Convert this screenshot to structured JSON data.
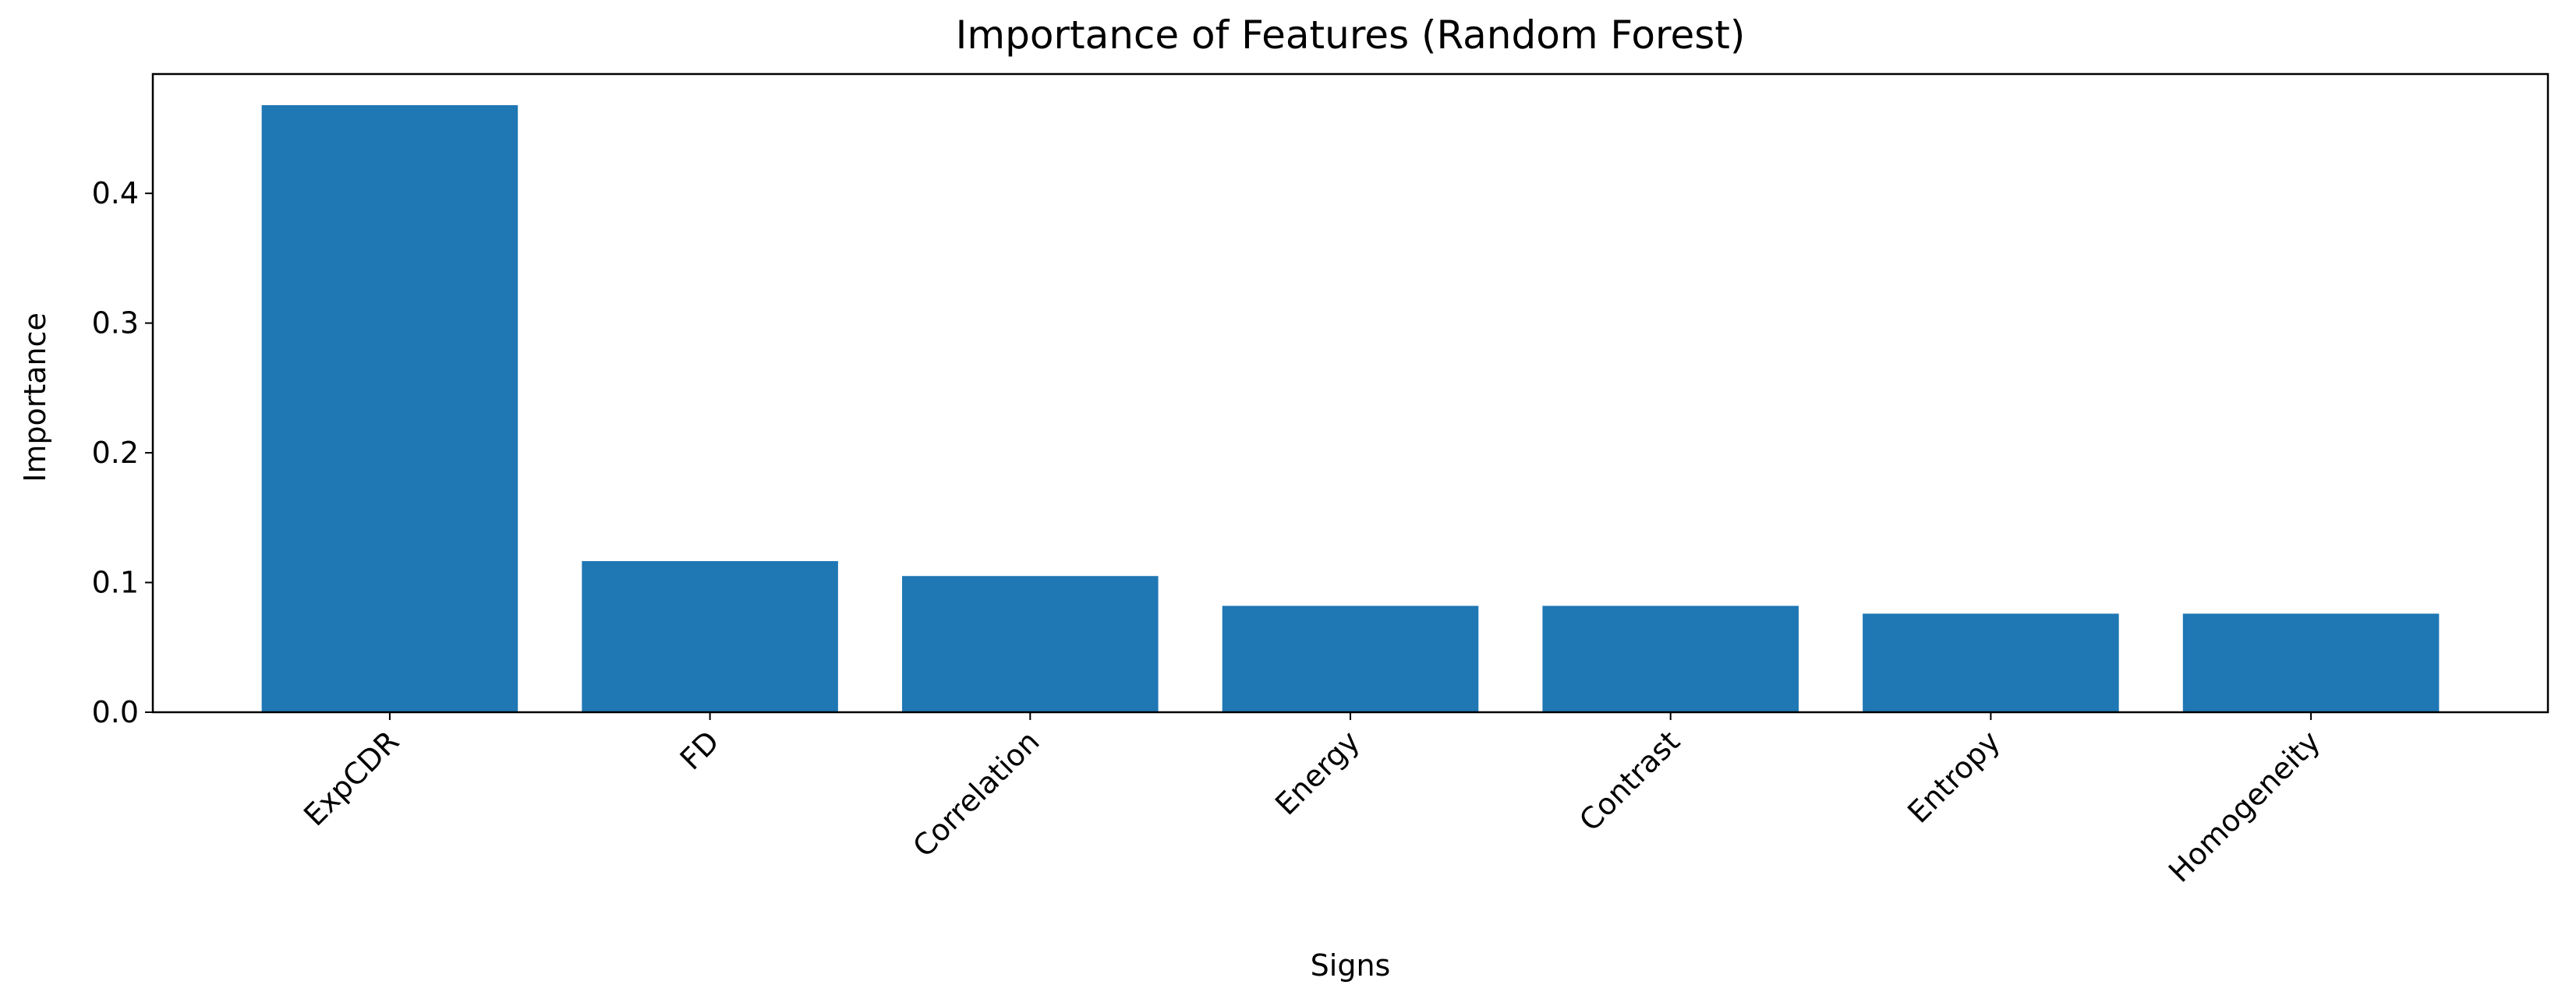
{
  "chart_data": {
    "type": "bar",
    "title": "Importance of Features (Random Forest)",
    "x_label": "Signs",
    "y_label": "Importance",
    "categories": [
      "ExpCDR",
      "FD",
      "Correlation",
      "Energy",
      "Contrast",
      "Entropy",
      "Homogeneity"
    ],
    "values": [
      0.468,
      0.1165,
      0.105,
      0.082,
      0.082,
      0.076,
      0.076
    ],
    "color": "#1f77b4",
    "ylim": [
      0,
      0.492
    ],
    "yticks": [
      {
        "value": 0,
        "label": "0.0"
      },
      0.1,
      0.2,
      0.3,
      0.4
    ],
    "grid": false
  }
}
